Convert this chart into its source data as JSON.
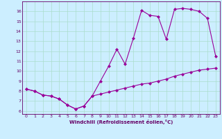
{
  "xlabel": "Windchill (Refroidissement éolien,°C)",
  "background_color": "#cceeff",
  "line_color": "#990099",
  "xlim": [
    -0.5,
    23.5
  ],
  "ylim": [
    5.7,
    17.0
  ],
  "yticks": [
    6,
    7,
    8,
    9,
    10,
    11,
    12,
    13,
    14,
    15,
    16
  ],
  "xticks": [
    0,
    1,
    2,
    3,
    4,
    5,
    6,
    7,
    8,
    9,
    10,
    11,
    12,
    13,
    14,
    15,
    16,
    17,
    18,
    19,
    20,
    21,
    22,
    23
  ],
  "curve1_x": [
    0,
    1,
    2,
    3,
    4,
    5,
    6,
    7,
    8,
    9,
    10,
    11,
    12,
    13,
    14,
    15,
    16,
    17,
    18,
    19,
    20,
    21,
    22,
    23
  ],
  "curve1_y": [
    8.2,
    8.0,
    7.6,
    7.5,
    7.2,
    6.6,
    6.2,
    6.5,
    7.5,
    9.0,
    10.5,
    12.2,
    10.7,
    13.3,
    16.1,
    15.6,
    15.5,
    13.2,
    16.2,
    16.3,
    16.2,
    16.0,
    15.3,
    11.5
  ],
  "curve2_x": [
    0,
    1,
    2,
    3,
    4,
    5,
    6,
    7,
    8,
    9,
    10,
    11,
    12,
    13,
    14,
    15,
    16,
    17,
    18,
    19,
    20,
    21,
    22,
    23
  ],
  "curve2_y": [
    8.2,
    8.0,
    7.6,
    7.5,
    7.2,
    6.6,
    6.2,
    6.5,
    7.5,
    7.7,
    7.9,
    8.1,
    8.3,
    8.5,
    8.7,
    8.8,
    9.0,
    9.2,
    9.5,
    9.7,
    9.9,
    10.1,
    10.2,
    10.3
  ],
  "grid_color": "#aaddcc",
  "marker": "D",
  "markersize": 2.0,
  "linewidth": 0.8,
  "tick_fontsize": 4.5,
  "xlabel_fontsize": 5.0,
  "tick_color": "#660066",
  "spine_color": "#660066"
}
